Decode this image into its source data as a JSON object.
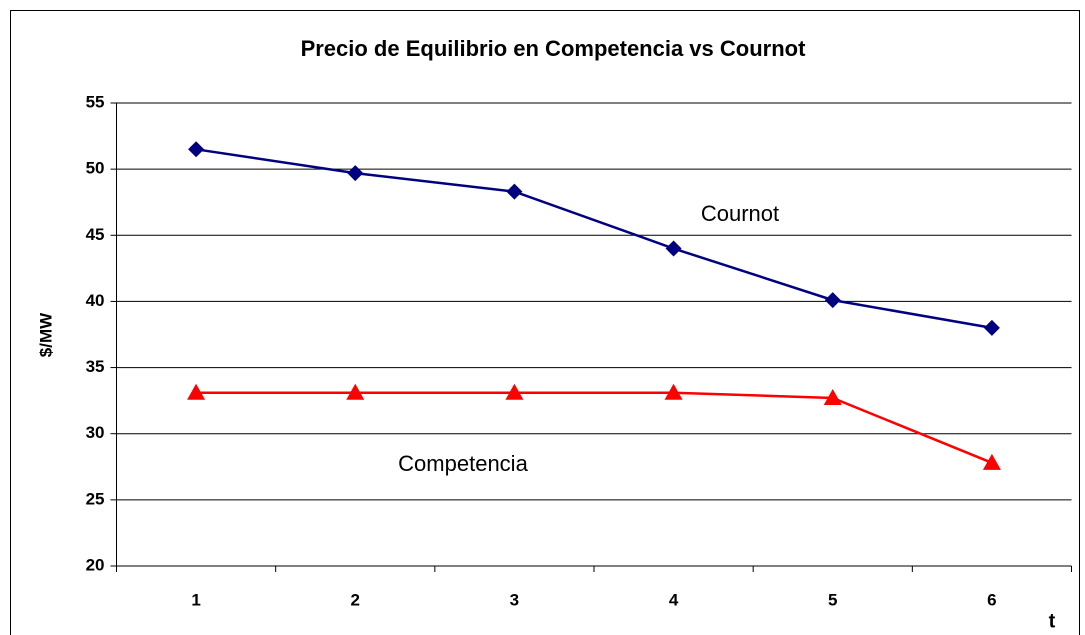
{
  "chart_data": {
    "type": "line",
    "title": "Precio de Equilibrio en Competencia vs Cournot",
    "y_label": "$/MW",
    "x_label": "t",
    "categories": [
      "1",
      "2",
      "3",
      "4",
      "5",
      "6"
    ],
    "series": [
      {
        "name": "Cournot",
        "color": "#000080",
        "marker": "diamond",
        "values": [
          51.5,
          49.7,
          48.3,
          44.0,
          40.1,
          38.0
        ]
      },
      {
        "name": "Competencia",
        "color": "#ff0000",
        "marker": "triangle",
        "values": [
          33.1,
          33.1,
          33.1,
          33.1,
          32.7,
          27.8
        ]
      }
    ],
    "annotations": [
      "Cournot",
      "Competencia"
    ],
    "ylim": [
      20,
      55
    ],
    "yticks": [
      20,
      25,
      30,
      35,
      40,
      45,
      50,
      55
    ],
    "grid": true
  }
}
